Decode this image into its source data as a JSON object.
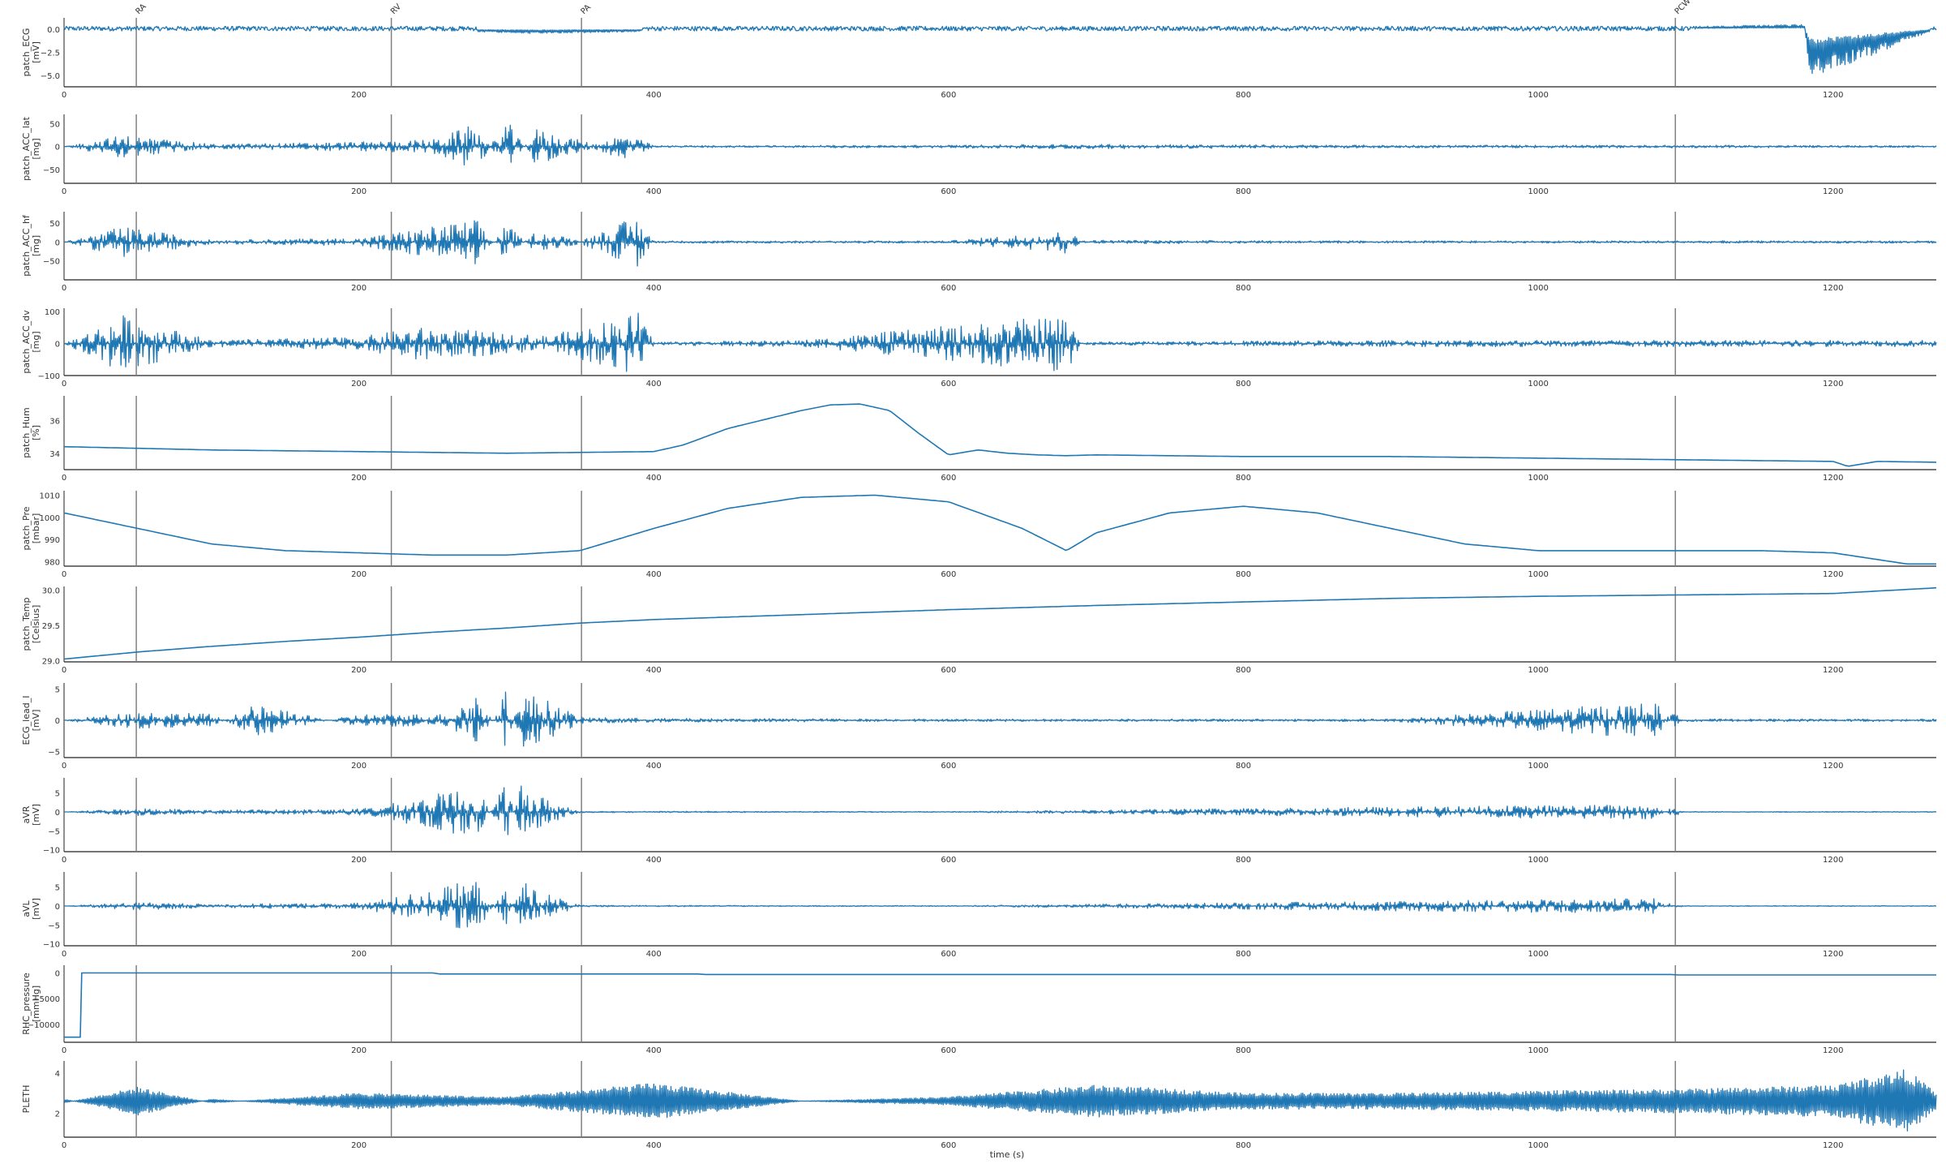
{
  "chart_data": {
    "type": "line",
    "xlabel": "time (s)",
    "xlim": [
      0,
      1270
    ],
    "x_ticks": [
      0,
      200,
      400,
      600,
      800,
      1000,
      1200
    ],
    "line_color": "#1f77b4",
    "marker_color": "#808080",
    "grid": false,
    "events": [
      {
        "label": "RA",
        "x": 49
      },
      {
        "label": "RV",
        "x": 222
      },
      {
        "label": "PA",
        "x": 351
      },
      {
        "label": "PCW",
        "x": 1093
      }
    ],
    "panels": [
      {
        "ylabel": "patch_ECG",
        "unit": "[mV]",
        "ylim": [
          -6.2,
          1.2
        ],
        "y_ticks": [
          -5.0,
          -2.5,
          0.0
        ],
        "y_tick_labels": [
          "−5.0",
          "−2.5",
          "0.0"
        ],
        "x": [
          0,
          100,
          200,
          320,
          500,
          760,
          1000,
          1180,
          1185,
          1270
        ],
        "y": [
          0.0,
          0.0,
          0.1,
          -0.5,
          0.0,
          -0.2,
          0.0,
          0.5,
          -5.5,
          0.0
        ]
      },
      {
        "ylabel": "patch_ACC_lat",
        "unit": "[mg]",
        "ylim": [
          -80,
          70
        ],
        "y_ticks": [
          -50,
          0,
          50
        ],
        "y_tick_labels": [
          "−50",
          "0",
          "50"
        ],
        "x": [
          0,
          40,
          100,
          200,
          250,
          280,
          300,
          320,
          360,
          380,
          400,
          600,
          680,
          900,
          1100,
          1270
        ],
        "y": [
          0,
          25,
          5,
          10,
          15,
          50,
          -60,
          40,
          5,
          30,
          2,
          3,
          5,
          3,
          3,
          2
        ]
      },
      {
        "ylabel": "patch_ACC_hf",
        "unit": "[mg]",
        "ylim": [
          -100,
          80
        ],
        "y_ticks": [
          -50,
          0,
          50
        ],
        "y_tick_labels": [
          "−50",
          "0",
          "50"
        ],
        "x": [
          0,
          40,
          100,
          200,
          280,
          300,
          320,
          350,
          390,
          400,
          600,
          680,
          690,
          900,
          1100,
          1270
        ],
        "y": [
          0,
          40,
          5,
          10,
          60,
          -50,
          30,
          5,
          70,
          3,
          3,
          30,
          5,
          3,
          3,
          3
        ]
      },
      {
        "ylabel": "patch_ACC_dv",
        "unit": "[mg]",
        "ylim": [
          -100,
          110
        ],
        "y_ticks": [
          -100,
          0,
          100
        ],
        "y_tick_labels": [
          "−100",
          "0",
          "100"
        ],
        "x": [
          0,
          40,
          100,
          200,
          240,
          280,
          300,
          330,
          390,
          400,
          500,
          680,
          690,
          900,
          1100,
          1270
        ],
        "y": [
          0,
          90,
          10,
          20,
          50,
          40,
          30,
          25,
          100,
          5,
          10,
          90,
          5,
          10,
          10,
          10
        ]
      },
      {
        "ylabel": "patch_Hum",
        "unit": "[%]",
        "ylim": [
          33.0,
          37.5
        ],
        "y_ticks": [
          34,
          36
        ],
        "y_tick_labels": [
          "34",
          "36"
        ],
        "x": [
          0,
          50,
          100,
          150,
          200,
          250,
          300,
          350,
          400,
          420,
          450,
          500,
          520,
          540,
          560,
          580,
          600,
          620,
          640,
          660,
          680,
          700,
          750,
          800,
          900,
          1000,
          1100,
          1200,
          1210,
          1230,
          1270
        ],
        "y": [
          34.4,
          34.3,
          34.2,
          34.15,
          34.1,
          34.05,
          34.0,
          34.05,
          34.1,
          34.5,
          35.5,
          36.6,
          36.95,
          37.0,
          36.6,
          35.2,
          33.9,
          34.2,
          34.0,
          33.9,
          33.85,
          33.9,
          33.85,
          33.8,
          33.8,
          33.7,
          33.6,
          33.5,
          33.2,
          33.5,
          33.45
        ]
      },
      {
        "ylabel": "patch_Pre",
        "unit": "[mbar]",
        "ylim": [
          978,
          1012
        ],
        "y_ticks": [
          980,
          990,
          1000,
          1010
        ],
        "y_tick_labels": [
          "980",
          "990",
          "1000",
          "1010"
        ],
        "x": [
          0,
          50,
          100,
          150,
          200,
          250,
          300,
          350,
          400,
          450,
          500,
          550,
          600,
          650,
          680,
          700,
          750,
          800,
          850,
          900,
          950,
          1000,
          1050,
          1100,
          1150,
          1200,
          1250,
          1270
        ],
        "y": [
          1002,
          995,
          988,
          985,
          984,
          983,
          983,
          985,
          995,
          1004,
          1009,
          1010,
          1007,
          995,
          985,
          993,
          1002,
          1005,
          1002,
          995,
          988,
          985,
          985,
          985,
          985,
          984,
          979,
          979
        ]
      },
      {
        "ylabel": "patch_Temp",
        "unit": "[Celsius]",
        "ylim": [
          28.98,
          30.05
        ],
        "y_ticks": [
          29.0,
          29.5,
          30.0
        ],
        "y_tick_labels": [
          "29.0",
          "29.5",
          "30.0"
        ],
        "x": [
          0,
          50,
          100,
          150,
          200,
          250,
          300,
          350,
          400,
          500,
          600,
          700,
          800,
          900,
          1000,
          1100,
          1200,
          1270
        ],
        "y": [
          29.02,
          29.12,
          29.2,
          29.27,
          29.33,
          29.4,
          29.46,
          29.53,
          29.58,
          29.65,
          29.72,
          29.78,
          29.83,
          29.88,
          29.91,
          29.93,
          29.95,
          30.03
        ]
      },
      {
        "ylabel": "ECG_lead_I",
        "unit": "[mV]",
        "ylim": [
          -6,
          6
        ],
        "y_ticks": [
          -5,
          0,
          5
        ],
        "y_tick_labels": [
          "−5",
          "0",
          "5"
        ],
        "x": [
          0,
          50,
          100,
          130,
          200,
          260,
          280,
          300,
          310,
          330,
          350,
          400,
          600,
          900,
          1080,
          1090,
          1100,
          1270
        ],
        "y": [
          0,
          1.5,
          1.0,
          -2.5,
          1.0,
          1.0,
          5.0,
          -5.0,
          5.0,
          3.0,
          0.5,
          0.3,
          0.2,
          0.2,
          3.0,
          -1.5,
          0.2,
          0.2
        ]
      },
      {
        "ylabel": "aVR",
        "unit": "[mV]",
        "ylim": [
          -10.5,
          9
        ],
        "y_ticks": [
          -10,
          -5,
          0,
          5
        ],
        "y_tick_labels": [
          "−10",
          "−5",
          "0",
          "5"
        ],
        "x": [
          0,
          50,
          100,
          200,
          220,
          280,
          300,
          310,
          330,
          350,
          600,
          1080,
          1090,
          1100,
          1270
        ],
        "y": [
          0,
          1.0,
          0.5,
          0.8,
          2.0,
          7.0,
          -8.0,
          7.0,
          3.0,
          0.2,
          0.1,
          2.0,
          -1.5,
          0.1,
          0.1
        ]
      },
      {
        "ylabel": "aVL",
        "unit": "[mV]",
        "ylim": [
          -10.5,
          9
        ],
        "y_ticks": [
          -10,
          -5,
          0,
          5
        ],
        "y_tick_labels": [
          "−10",
          "−5",
          "0",
          "5"
        ],
        "x": [
          0,
          50,
          100,
          200,
          220,
          280,
          300,
          310,
          330,
          350,
          600,
          1080,
          1090,
          1100,
          1270
        ],
        "y": [
          0,
          1.0,
          0.5,
          0.8,
          2.0,
          7.0,
          -5.0,
          7.0,
          3.0,
          0.2,
          0.1,
          2.0,
          -1.0,
          0.1,
          0.1
        ]
      },
      {
        "ylabel": "RHC_pressure",
        "unit": "[mmHg]",
        "ylim": [
          -13500,
          1500
        ],
        "y_ticks": [
          -10000,
          -5000,
          0
        ],
        "y_tick_labels": [
          "−10000",
          "−5000",
          "0"
        ],
        "x": [
          0,
          11,
          12,
          250,
          255,
          430,
          435,
          1090,
          1095,
          1270
        ],
        "y": [
          -12500,
          -12500,
          0,
          0,
          -200,
          -200,
          -300,
          -300,
          -400,
          -400
        ]
      },
      {
        "ylabel": "PLETH",
        "unit": "",
        "ylim": [
          0.8,
          4.6
        ],
        "y_ticks": [
          2,
          4
        ],
        "y_tick_labels": [
          "2",
          "4"
        ],
        "x": [
          0,
          50,
          100,
          200,
          300,
          400,
          500,
          600,
          700,
          800,
          900,
          1000,
          1100,
          1200,
          1250,
          1270
        ],
        "y": [
          2.5,
          3.3,
          2.5,
          3.0,
          2.8,
          3.5,
          2.6,
          2.8,
          3.4,
          3.0,
          3.0,
          3.1,
          3.2,
          3.4,
          4.2,
          3.0
        ]
      }
    ]
  }
}
